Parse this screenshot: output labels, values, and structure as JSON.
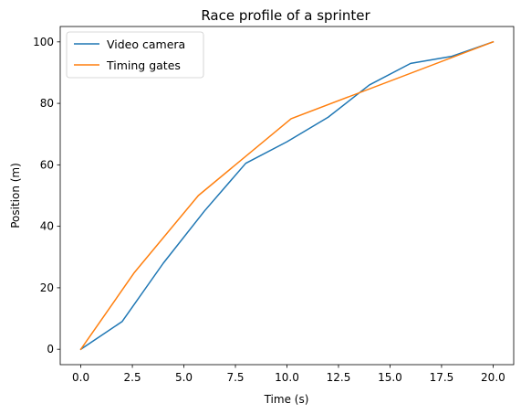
{
  "chart_data": {
    "type": "line",
    "title": "Race profile of a sprinter",
    "xlabel": "Time (s)",
    "ylabel": "Position (m)",
    "xlim": [
      -1.0,
      21.0
    ],
    "ylim": [
      -5,
      105
    ],
    "xticks": [
      0.0,
      2.5,
      5.0,
      7.5,
      10.0,
      12.5,
      15.0,
      17.5,
      20.0
    ],
    "xtick_labels": [
      "0.0",
      "2.5",
      "5.0",
      "7.5",
      "10.0",
      "12.5",
      "15.0",
      "17.5",
      "20.0"
    ],
    "yticks": [
      0,
      20,
      40,
      60,
      80,
      100
    ],
    "ytick_labels": [
      "0",
      "20",
      "40",
      "60",
      "80",
      "100"
    ],
    "grid": false,
    "legend_position": "upper-left",
    "series": [
      {
        "name": "Video camera",
        "color": "#1f77b4",
        "x": [
          0,
          2,
          4,
          6,
          8,
          10,
          12,
          14,
          16,
          18,
          20
        ],
        "y": [
          0,
          9,
          28,
          45,
          60.5,
          67.5,
          75.5,
          86,
          93,
          95.3,
          100
        ]
      },
      {
        "name": "Timing gates",
        "color": "#ff7f0e",
        "x": [
          0,
          2.6,
          5.7,
          10.2,
          20
        ],
        "y": [
          0,
          25,
          50,
          75,
          100
        ]
      }
    ]
  }
}
